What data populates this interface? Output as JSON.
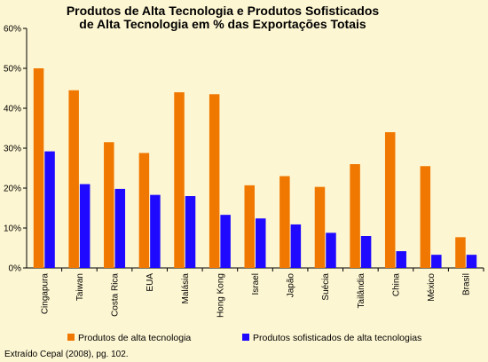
{
  "chart_data": {
    "type": "bar",
    "title_lines": [
      "Produtos de Alta Tecnologia e Produtos Sofisticados",
      "de Alta Tecnologia em % das Exportações Totais"
    ],
    "categories": [
      "Cingapura",
      "Taiwan",
      "Costa Rica",
      "EUA",
      "Malásia",
      "Hong Kong",
      "Israel",
      "Japão",
      "Suécia",
      "Tailândia",
      "China",
      "México",
      "Brasil"
    ],
    "series": [
      {
        "name": "Produtos de alta tecnologia",
        "color": "#f07800",
        "values": [
          50,
          44.5,
          31.5,
          28.8,
          44,
          43.5,
          20.7,
          23,
          20.3,
          26,
          34,
          25.5,
          7.7
        ]
      },
      {
        "name": "Produtos sofisticados de alta tecnologias",
        "color": "#1f0aff",
        "values": [
          29.2,
          21,
          19.8,
          18.3,
          18,
          13.3,
          12.4,
          10.9,
          8.8,
          8,
          4.2,
          3.3,
          3.3
        ]
      }
    ],
    "ylim": [
      0,
      60
    ],
    "yticks": [
      "0%",
      "10%",
      "20%",
      "30%",
      "40%",
      "50%",
      "60%"
    ],
    "grid": false,
    "legend_position": "bottom",
    "source": "Extraído Cepal (2008), pg. 102."
  }
}
